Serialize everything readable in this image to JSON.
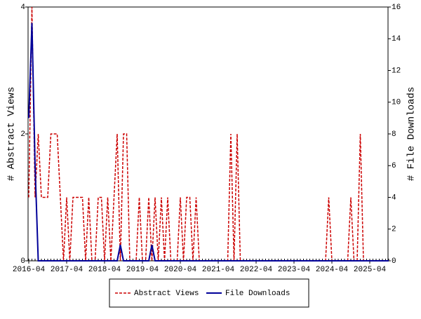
{
  "chart_data": {
    "type": "line",
    "y_label": "# Abstract Views",
    "y2_label": "# File Downloads",
    "x": [
      "2016-04",
      "2016-05",
      "2016-06",
      "2016-07",
      "2016-08",
      "2016-09",
      "2016-10",
      "2016-11",
      "2016-12",
      "2017-01",
      "2017-02",
      "2017-03",
      "2017-04",
      "2017-05",
      "2017-06",
      "2017-07",
      "2017-08",
      "2017-09",
      "2017-10",
      "2017-11",
      "2017-12",
      "2018-01",
      "2018-02",
      "2018-03",
      "2018-04",
      "2018-05",
      "2018-06",
      "2018-07",
      "2018-08",
      "2018-09",
      "2018-10",
      "2018-11",
      "2018-12",
      "2019-01",
      "2019-02",
      "2019-03",
      "2019-04",
      "2019-05",
      "2019-06",
      "2019-07",
      "2019-08",
      "2019-09",
      "2019-10",
      "2019-11",
      "2019-12",
      "2020-01",
      "2020-02",
      "2020-03",
      "2020-04",
      "2020-05",
      "2020-06",
      "2020-07",
      "2020-08",
      "2020-09",
      "2020-10",
      "2020-11",
      "2020-12",
      "2021-01",
      "2021-02",
      "2021-03",
      "2021-04",
      "2021-05",
      "2021-06",
      "2021-07",
      "2021-08",
      "2021-09",
      "2021-10",
      "2021-11",
      "2021-12",
      "2022-01",
      "2022-02",
      "2022-03",
      "2022-04",
      "2022-05",
      "2022-06",
      "2022-07",
      "2022-08",
      "2022-09",
      "2022-10",
      "2022-11",
      "2022-12",
      "2023-01",
      "2023-02",
      "2023-03",
      "2023-04",
      "2023-05",
      "2023-06",
      "2023-07",
      "2023-08",
      "2023-09",
      "2023-10",
      "2023-11",
      "2023-12",
      "2024-01",
      "2024-02",
      "2024-03",
      "2024-04",
      "2024-05",
      "2024-06",
      "2024-07",
      "2024-08",
      "2024-09",
      "2024-10",
      "2024-11",
      "2024-12",
      "2025-01",
      "2025-02",
      "2025-03",
      "2025-04",
      "2025-05",
      "2025-06",
      "2025-07",
      "2025-08",
      "2025-09",
      "2025-10"
    ],
    "xticks": [
      "2016-04",
      "2017-04",
      "2018-04",
      "2019-04",
      "2020-04",
      "2021-04",
      "2022-04",
      "2023-04",
      "2024-04",
      "2025-04"
    ],
    "ylim": [
      0,
      4
    ],
    "yticks": [
      0,
      2,
      4
    ],
    "y2lim": [
      0,
      16
    ],
    "y2ticks": [
      0,
      2,
      4,
      6,
      8,
      10,
      12,
      14,
      16
    ],
    "legend": "bottom",
    "series": [
      {
        "name": "Abstract Views",
        "color": "#cc0000",
        "dashed": true,
        "values": [
          1,
          4,
          1,
          2,
          1,
          1,
          1,
          2,
          2,
          2,
          1,
          0,
          1,
          0,
          1,
          1,
          1,
          1,
          0,
          1,
          0,
          0,
          1,
          1,
          0,
          1,
          0,
          1,
          2,
          0,
          2,
          2,
          0,
          0,
          0,
          1,
          0,
          0,
          1,
          0,
          1,
          0,
          1,
          0,
          1,
          0,
          0,
          0,
          1,
          0,
          1,
          1,
          0,
          1,
          0,
          0,
          0,
          0,
          0,
          0,
          0,
          0,
          0,
          0,
          2,
          0,
          2,
          0,
          0,
          0,
          0,
          0,
          0,
          0,
          0,
          0,
          0,
          0,
          0,
          0,
          0,
          0,
          0,
          0,
          0,
          0,
          0,
          0,
          0,
          0,
          0,
          0,
          0,
          0,
          0,
          1,
          0,
          0,
          0,
          0,
          0,
          0,
          1,
          0,
          0,
          2,
          0,
          0,
          0,
          0,
          0,
          0,
          0,
          0,
          0
        ]
      },
      {
        "name": "File Downloads",
        "color": "#000099",
        "dashed": false,
        "axis": "y2",
        "values": [
          9,
          15,
          6,
          0,
          0,
          0,
          0,
          0,
          0,
          0,
          0,
          0,
          0,
          0,
          0,
          0,
          0,
          0,
          0,
          0,
          0,
          0,
          0,
          0,
          0,
          0,
          0,
          0,
          0,
          1,
          0,
          0,
          0,
          0,
          0,
          0,
          0,
          0,
          0,
          1,
          0,
          0,
          0,
          0,
          0,
          0,
          0,
          0,
          0,
          0,
          0,
          0,
          0,
          0,
          0,
          0,
          0,
          0,
          0,
          0,
          0,
          0,
          0,
          0,
          0,
          0,
          0,
          0,
          0,
          0,
          0,
          0,
          0,
          0,
          0,
          0,
          0,
          0,
          0,
          0,
          0,
          0,
          0,
          0,
          0,
          0,
          0,
          0,
          0,
          0,
          0,
          0,
          0,
          0,
          0,
          0,
          0,
          0,
          0,
          0,
          0,
          0,
          0,
          0,
          0,
          0,
          0,
          0,
          0,
          0,
          0,
          0,
          0,
          0,
          0
        ]
      }
    ]
  }
}
